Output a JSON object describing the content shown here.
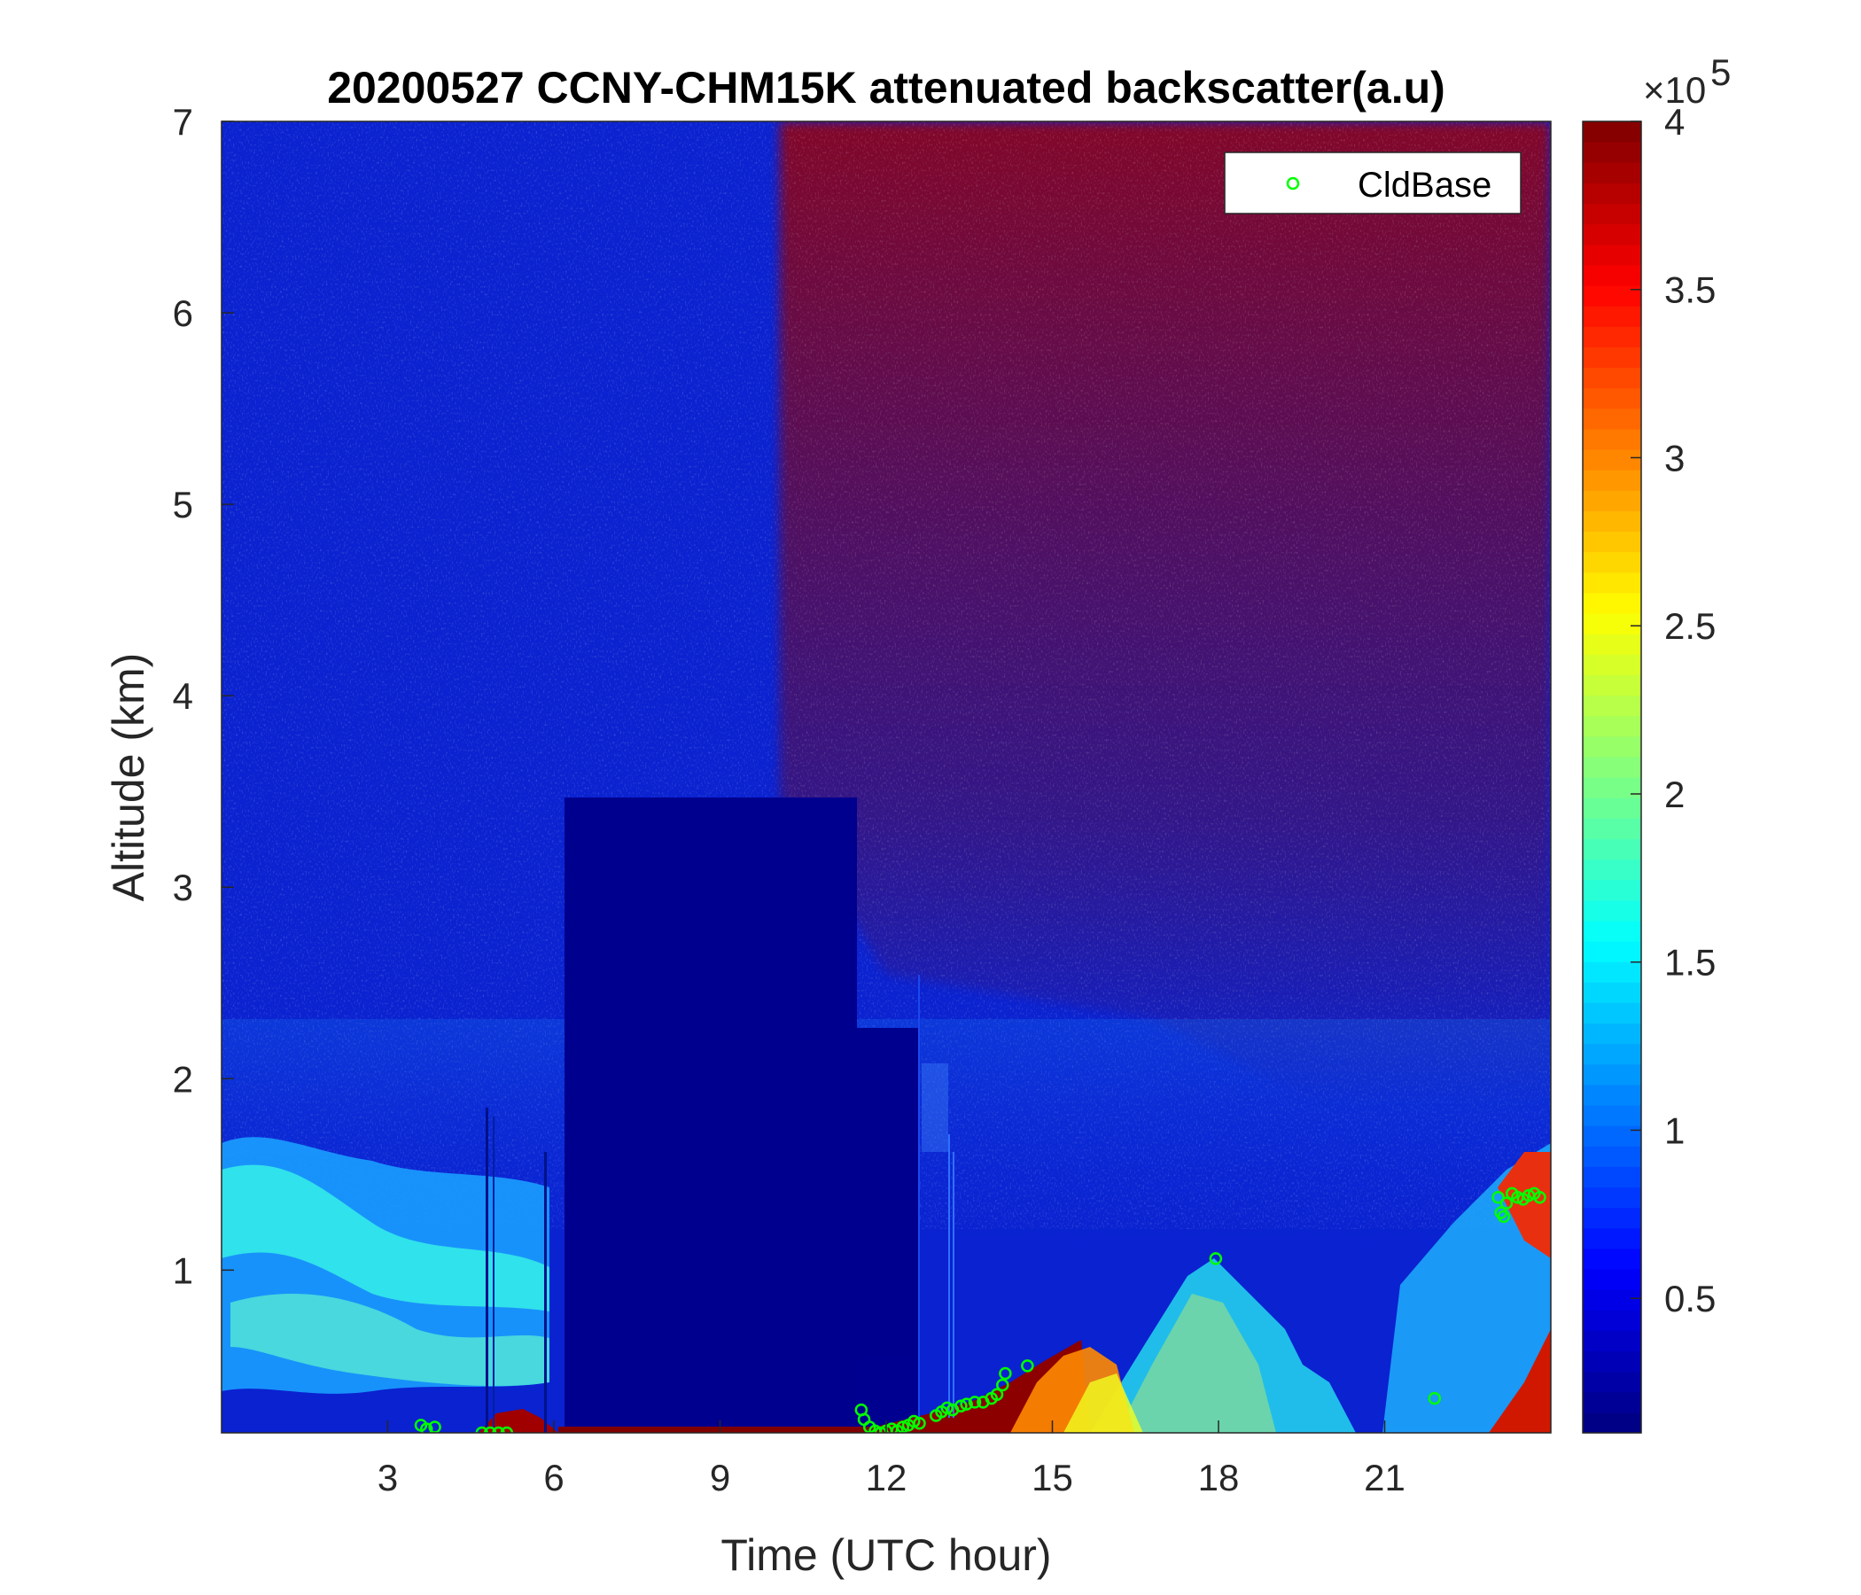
{
  "chart_data": {
    "type": "heatmap",
    "title": "20200527 CCNY-CHM15K attenuated backscatter(a.u)",
    "xlabel": "Time (UTC hour)",
    "ylabel": "Altitude (km)",
    "xlim": [
      0,
      24
    ],
    "ylim": [
      0.15,
      7
    ],
    "xticks": [
      3,
      6,
      9,
      12,
      15,
      18,
      21
    ],
    "yticks": [
      1,
      2,
      3,
      4,
      5,
      6,
      7
    ],
    "colorbar": {
      "colormap": "jet",
      "range": [
        0.1,
        4
      ],
      "ticks": [
        0.5,
        1,
        1.5,
        2,
        2.5,
        3,
        3.5,
        4
      ],
      "multiplier": "×10",
      "exponent": "5"
    },
    "legend": {
      "position": "top-right",
      "entries": [
        {
          "label": "CldBase",
          "marker": "circle",
          "color": "#00ff00"
        }
      ]
    },
    "cloud_base": {
      "name": "CldBase",
      "points": [
        [
          3.6,
          0.19
        ],
        [
          3.7,
          0.17
        ],
        [
          3.85,
          0.18
        ],
        [
          4.7,
          0.15
        ],
        [
          4.85,
          0.15
        ],
        [
          5.0,
          0.15
        ],
        [
          5.15,
          0.15
        ],
        [
          11.55,
          0.27
        ],
        [
          11.6,
          0.22
        ],
        [
          11.7,
          0.18
        ],
        [
          11.8,
          0.16
        ],
        [
          11.9,
          0.15
        ],
        [
          12.0,
          0.16
        ],
        [
          12.1,
          0.17
        ],
        [
          12.2,
          0.16
        ],
        [
          12.3,
          0.18
        ],
        [
          12.4,
          0.19
        ],
        [
          12.5,
          0.21
        ],
        [
          12.6,
          0.2
        ],
        [
          12.9,
          0.24
        ],
        [
          13.0,
          0.26
        ],
        [
          13.1,
          0.28
        ],
        [
          13.2,
          0.27
        ],
        [
          13.35,
          0.29
        ],
        [
          13.45,
          0.3
        ],
        [
          13.6,
          0.31
        ],
        [
          13.75,
          0.31
        ],
        [
          13.9,
          0.33
        ],
        [
          14.0,
          0.35
        ],
        [
          14.1,
          0.4
        ],
        [
          14.15,
          0.46
        ],
        [
          14.55,
          0.5
        ],
        [
          17.95,
          1.06
        ],
        [
          21.9,
          0.33
        ],
        [
          23.05,
          1.38
        ],
        [
          23.1,
          1.3
        ],
        [
          23.15,
          1.28
        ],
        [
          23.2,
          1.35
        ],
        [
          23.3,
          1.4
        ],
        [
          23.4,
          1.38
        ],
        [
          23.5,
          1.37
        ],
        [
          23.6,
          1.39
        ],
        [
          23.7,
          1.4
        ],
        [
          23.8,
          1.38
        ]
      ]
    }
  }
}
